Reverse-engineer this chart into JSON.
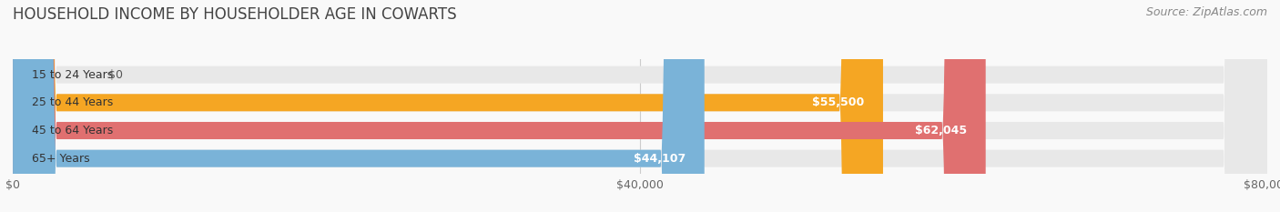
{
  "title": "HOUSEHOLD INCOME BY HOUSEHOLDER AGE IN COWARTS",
  "source": "Source: ZipAtlas.com",
  "categories": [
    "15 to 24 Years",
    "25 to 44 Years",
    "45 to 64 Years",
    "65+ Years"
  ],
  "values": [
    0,
    55500,
    62045,
    44107
  ],
  "bar_colors": [
    "#f4a0b4",
    "#f5a623",
    "#e07070",
    "#7ab3d8"
  ],
  "label_texts": [
    "$0",
    "$55,500",
    "$62,045",
    "$44,107"
  ],
  "x_ticks": [
    0,
    40000,
    80000
  ],
  "x_tick_labels": [
    "$0",
    "$40,000",
    "$80,000"
  ],
  "xlim": [
    0,
    80000
  ],
  "title_fontsize": 12,
  "source_fontsize": 9,
  "label_fontsize": 9,
  "tick_fontsize": 9,
  "cat_fontsize": 9,
  "background_color": "#f9f9f9",
  "bar_background_color": "#e8e8e8"
}
